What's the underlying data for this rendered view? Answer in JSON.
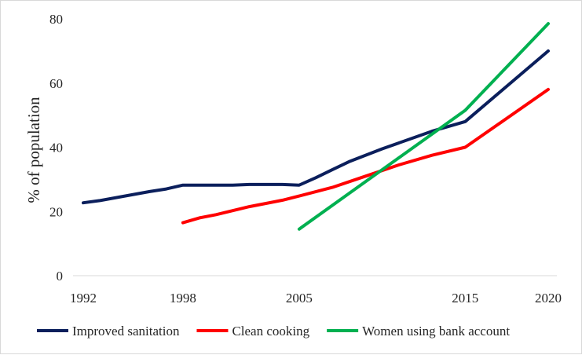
{
  "chart_data": {
    "type": "line",
    "title": "",
    "xlabel": "",
    "ylabel": "% of population",
    "xlim": [
      1992,
      2020
    ],
    "ylim": [
      0,
      80
    ],
    "x_ticks": [
      "1992",
      "1998",
      "2005",
      "2015",
      "2020"
    ],
    "y_ticks": [
      "0",
      "20",
      "40",
      "60",
      "80"
    ],
    "grid": false,
    "legend_position": "bottom",
    "series": [
      {
        "name": "Improved sanitation",
        "color": "#0b1f5c",
        "points": [
          [
            1992,
            22.7
          ],
          [
            1993,
            23.4
          ],
          [
            1996,
            26.2
          ],
          [
            1997,
            27.0
          ],
          [
            1998,
            28.2
          ],
          [
            2000,
            28.2
          ],
          [
            2001,
            28.2
          ],
          [
            2002,
            28.4
          ],
          [
            2004,
            28.4
          ],
          [
            2005,
            28.2
          ],
          [
            2006,
            30.5
          ],
          [
            2007,
            33.0
          ],
          [
            2008,
            35.5
          ],
          [
            2010,
            39.5
          ],
          [
            2013,
            45.0
          ],
          [
            2015,
            48.0
          ],
          [
            2020,
            70.0
          ]
        ]
      },
      {
        "name": "Clean cooking",
        "color": "#ff0000",
        "points": [
          [
            1998,
            16.5
          ],
          [
            1999,
            18.0
          ],
          [
            2000,
            19.0
          ],
          [
            2002,
            21.5
          ],
          [
            2004,
            23.5
          ],
          [
            2005,
            24.8
          ],
          [
            2007,
            27.5
          ],
          [
            2009,
            31.0
          ],
          [
            2011,
            34.5
          ],
          [
            2013,
            37.5
          ],
          [
            2015,
            40.0
          ],
          [
            2020,
            58.0
          ]
        ]
      },
      {
        "name": "Women using bank account",
        "color": "#00b050",
        "points": [
          [
            2005,
            14.5
          ],
          [
            2015,
            51.5
          ],
          [
            2020,
            78.5
          ]
        ]
      }
    ]
  }
}
